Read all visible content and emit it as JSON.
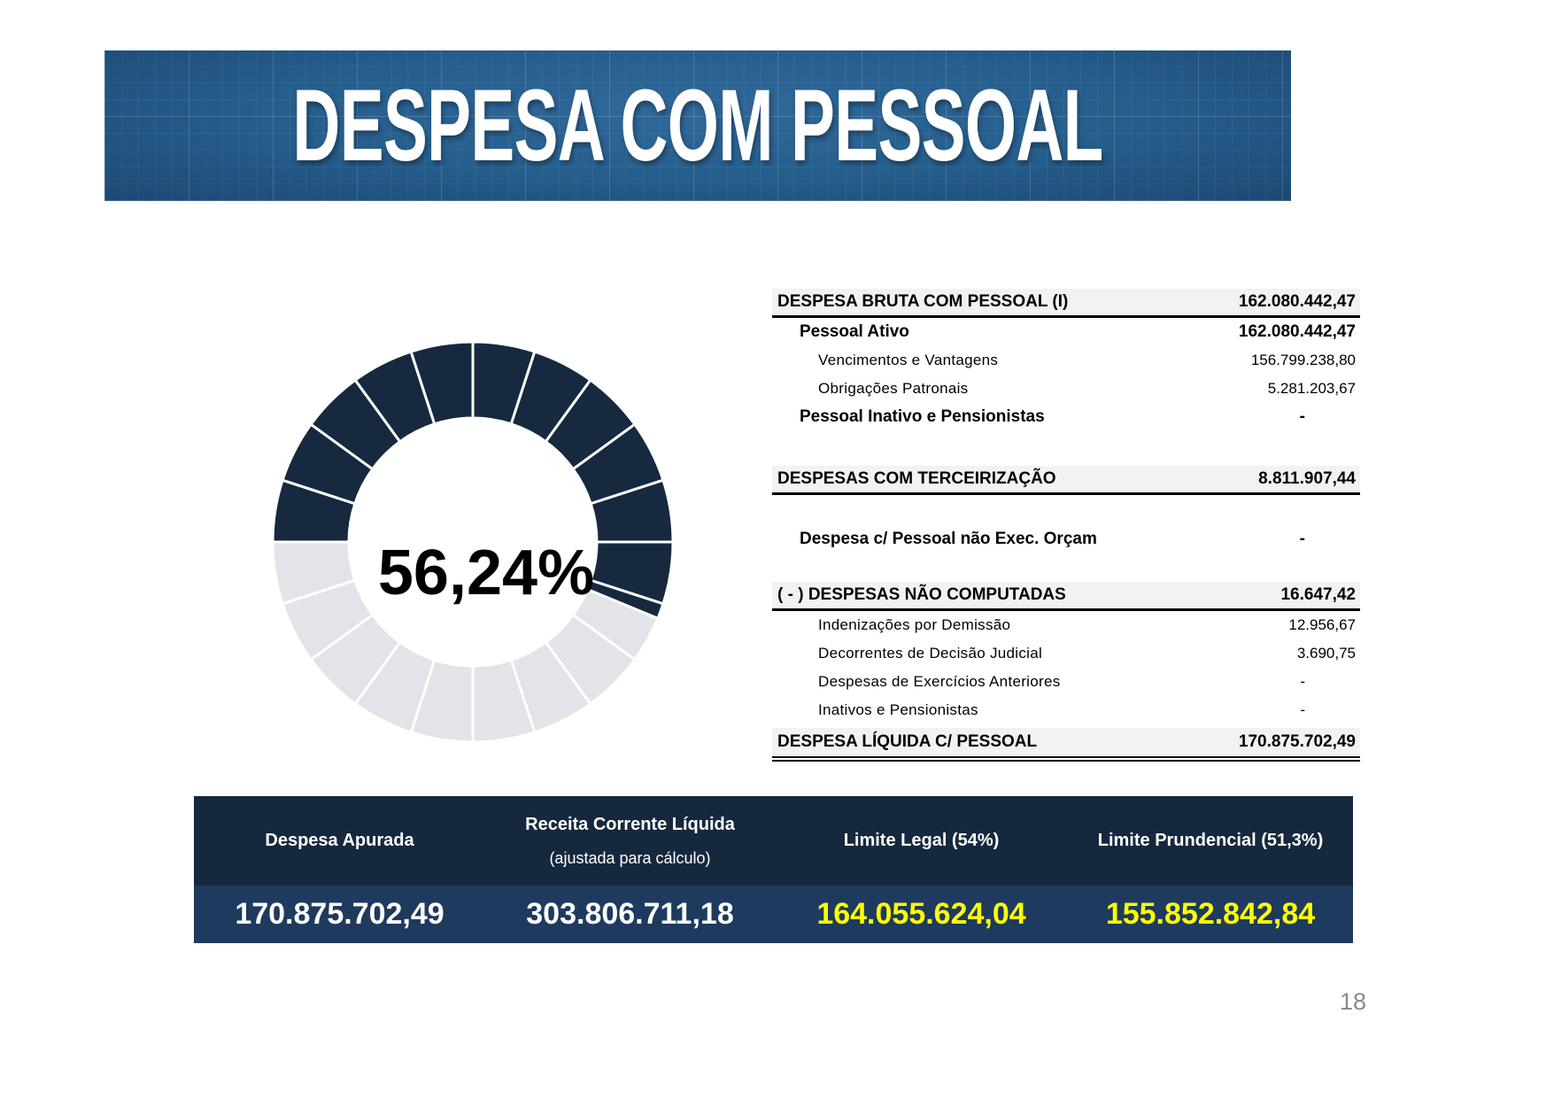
{
  "banner": {
    "title": "DESPESA COM PESSOAL"
  },
  "chart_data": {
    "type": "donut",
    "label": "56,24%",
    "value_pct": 56.24,
    "remainder_pct": 43.76,
    "segments_per_ring": 20,
    "segment_size_pct": 5,
    "start_angle_deg": 270,
    "direction": "clockwise",
    "filled_color": "#17293f",
    "remainder_color": "#e2e4e9",
    "gap_color": "#ffffff",
    "inner_radius_ratio": 0.62
  },
  "breakdown": {
    "rows": [
      {
        "label": "DESPESA BRUTA COM PESSOAL (I)",
        "value": "162.080.442,47",
        "style": "band"
      },
      {
        "label": "Pessoal Ativo",
        "value": "162.080.442,47",
        "style": "bold"
      },
      {
        "label": "Vencimentos e Vantagens",
        "value": "156.799.238,80",
        "style": "item"
      },
      {
        "label": "Obrigações Patronais",
        "value": "5.281.203,67",
        "style": "item"
      },
      {
        "label": "Pessoal Inativo e Pensionistas",
        "value": "-",
        "style": "bold"
      },
      {
        "label": "DESPESAS COM TERCEIRIZAÇÃO",
        "value": "8.811.907,44",
        "style": "band"
      },
      {
        "label": "Despesa c/ Pessoal não Exec. Orçam",
        "value": "-",
        "style": "bold"
      },
      {
        "label": "( - ) DESPESAS NÃO COMPUTADAS",
        "value": "16.647,42",
        "style": "band"
      },
      {
        "label": "Indenizações por Demissão",
        "value": "12.956,67",
        "style": "item"
      },
      {
        "label": "Decorrentes de Decisão Judicial",
        "value": "3.690,75",
        "style": "item"
      },
      {
        "label": "Despesas de Exercícios Anteriores",
        "value": "-",
        "style": "item"
      },
      {
        "label": "Inativos e Pensionistas",
        "value": "-",
        "style": "item"
      },
      {
        "label": "DESPESA LÍQUIDA C/ PESSOAL",
        "value": "170.875.702,49",
        "style": "band-final"
      }
    ]
  },
  "summary": {
    "columns": [
      {
        "header": "Despesa Apurada",
        "subheader": "",
        "value": "170.875.702,49",
        "value_color": "#ffffff"
      },
      {
        "header": "Receita Corrente Líquida",
        "subheader": "(ajustada para cálculo)",
        "value": "303.806.711,18",
        "value_color": "#ffffff"
      },
      {
        "header": "Limite Legal (54%)",
        "subheader": "",
        "value": "164.055.624,04",
        "value_color": "#ffff00"
      },
      {
        "header": "Limite Prundencial (51,3%)",
        "subheader": "",
        "value": "155.852.842,84",
        "value_color": "#ffff00"
      }
    ],
    "header_bg": "#16283e",
    "value_bg": "#1e3a5e"
  },
  "page_number": "18"
}
